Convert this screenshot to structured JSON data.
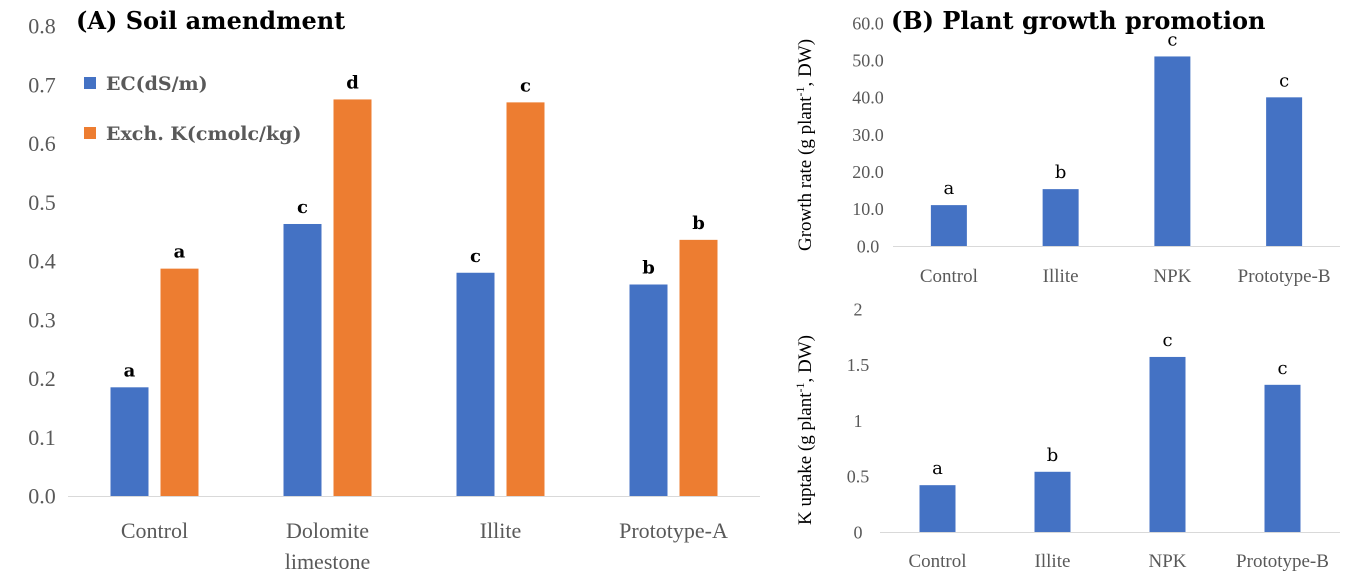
{
  "chart_data": [
    {
      "type": "bar",
      "title": "(A) Soil amendment",
      "categories": [
        "Control",
        "Dolomite limestone",
        "Illite",
        "Prototype-A"
      ],
      "category_lines": [
        [
          "Control"
        ],
        [
          "Dolomite",
          "limestone"
        ],
        [
          "Illite"
        ],
        [
          "Prototype-A"
        ]
      ],
      "series": [
        {
          "name": "EC(dS/m)",
          "color": "#4472C4",
          "values": [
            0.185,
            0.463,
            0.38,
            0.36
          ],
          "letters": [
            "a",
            "c",
            "c",
            "b"
          ]
        },
        {
          "name": "Exch. K(cmolc/kg)",
          "color": "#ED7D31",
          "values": [
            0.387,
            0.675,
            0.67,
            0.436
          ],
          "letters": [
            "a",
            "d",
            "c",
            "b"
          ]
        }
      ],
      "ylim": [
        0,
        0.8
      ],
      "yticks": [
        "0.0",
        "0.1",
        "0.2",
        "0.3",
        "0.4",
        "0.5",
        "0.6",
        "0.7",
        "0.8"
      ],
      "xlabel": "",
      "ylabel": "",
      "legend_position": "top-left"
    },
    {
      "type": "bar",
      "title": "(B) Plant growth promotion",
      "categories": [
        "Control",
        "Illite",
        "NPK",
        "Prototype-B"
      ],
      "series": [
        {
          "color": "#4472C4",
          "values": [
            11.0,
            15.3,
            51.0,
            40.0
          ],
          "letters": [
            "a",
            "b",
            "c",
            "c"
          ]
        }
      ],
      "ylim": [
        0,
        60
      ],
      "yticks": [
        "0.0",
        "10.0",
        "20.0",
        "30.0",
        "40.0",
        "50.0",
        "60.0"
      ],
      "ylabel": {
        "pre": "Growth rate (g plant",
        "sup": "-1",
        "post": ", DW)"
      }
    },
    {
      "type": "bar",
      "title": "",
      "categories": [
        "Control",
        "Illite",
        "NPK",
        "Prototype-B"
      ],
      "series": [
        {
          "color": "#4472C4",
          "values": [
            0.42,
            0.54,
            1.57,
            1.32
          ],
          "letters": [
            "a",
            "b",
            "c",
            "c"
          ]
        }
      ],
      "ylim": [
        0,
        2
      ],
      "yticks": [
        "0",
        "0.5",
        "1",
        "1.5",
        "2"
      ],
      "ylabel": {
        "pre": "K uptake (g plant",
        "sup": "-1",
        "post": ", DW)"
      }
    }
  ]
}
